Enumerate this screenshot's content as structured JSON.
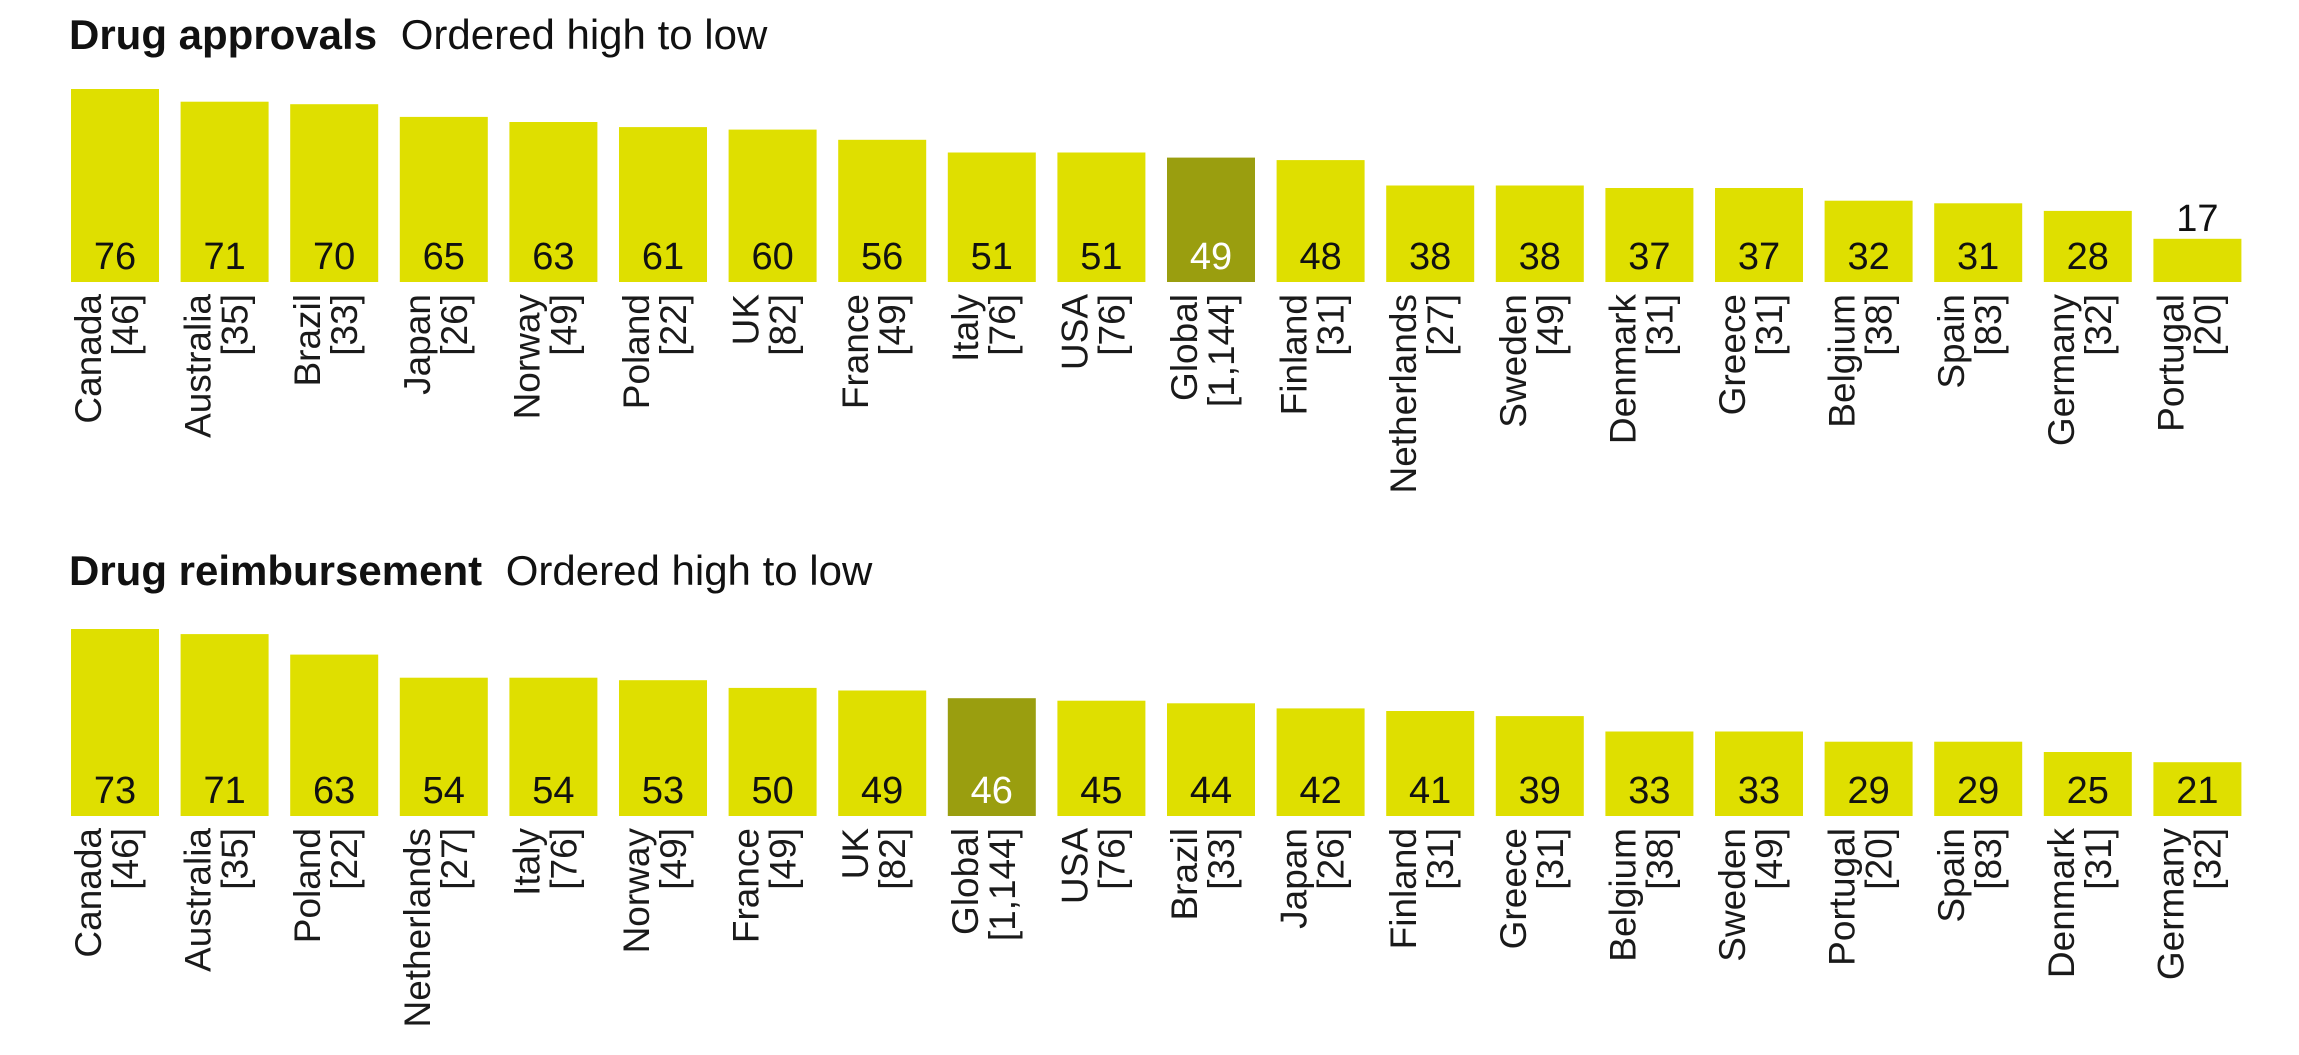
{
  "colors": {
    "bar": "#dfdf00",
    "highlight": "#9a9e0f",
    "text": "#111111",
    "highlight_text": "#ffffff"
  },
  "chart_data": [
    {
      "type": "bar",
      "title": "Drug approvals",
      "subtitle": "Ordered high to low",
      "ylim": [
        0,
        76
      ],
      "grid": false,
      "highlight": "Global",
      "categories": [
        "Canada",
        "Australia",
        "Brazil",
        "Japan",
        "Norway",
        "Poland",
        "UK",
        "France",
        "Italy",
        "USA",
        "Global",
        "Finland",
        "Netherlands",
        "Sweden",
        "Denmark",
        "Greece",
        "Belgium",
        "Spain",
        "Germany",
        "Portugal"
      ],
      "sample_sizes": [
        "[46]",
        "[35]",
        "[33]",
        "[26]",
        "[49]",
        "[22]",
        "[82]",
        "[49]",
        "[76]",
        "[76]",
        "[1,144]",
        "[31]",
        "[27]",
        "[49]",
        "[31]",
        "[31]",
        "[38]",
        "[83]",
        "[32]",
        "[20]"
      ],
      "values": [
        76,
        71,
        70,
        65,
        63,
        61,
        60,
        56,
        51,
        51,
        49,
        48,
        38,
        38,
        37,
        37,
        32,
        31,
        28,
        17
      ]
    },
    {
      "type": "bar",
      "title": "Drug reimbursement",
      "subtitle": "Ordered high to low",
      "ylim": [
        0,
        73
      ],
      "grid": false,
      "highlight": "Global",
      "categories": [
        "Canada",
        "Australia",
        "Poland",
        "Netherlands",
        "Italy",
        "Norway",
        "France",
        "UK",
        "Global",
        "USA",
        "Brazil",
        "Japan",
        "Finland",
        "Greece",
        "Belgium",
        "Sweden",
        "Portugal",
        "Spain",
        "Denmark",
        "Germany"
      ],
      "sample_sizes": [
        "[46]",
        "[35]",
        "[22]",
        "[27]",
        "[76]",
        "[49]",
        "[49]",
        "[82]",
        "[1,144]",
        "[76]",
        "[33]",
        "[26]",
        "[31]",
        "[31]",
        "[38]",
        "[49]",
        "[20]",
        "[83]",
        "[31]",
        "[32]"
      ],
      "values": [
        73,
        71,
        63,
        54,
        54,
        53,
        50,
        49,
        46,
        45,
        44,
        42,
        41,
        39,
        33,
        33,
        29,
        29,
        25,
        21
      ]
    }
  ]
}
